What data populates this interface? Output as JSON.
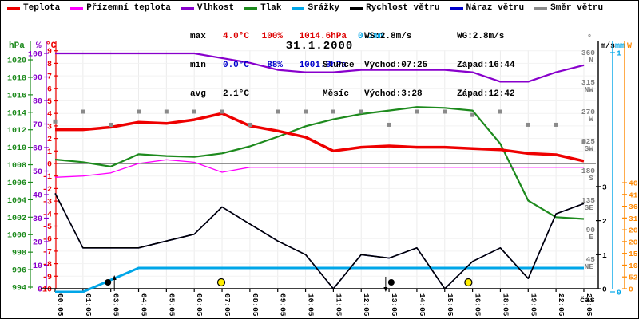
{
  "title": "31.1.2000",
  "xlabel": "čas",
  "legend": [
    {
      "label": "Teplota",
      "color": "#ee0000"
    },
    {
      "label": "Přízemní teplota",
      "color": "#ff00ff"
    },
    {
      "label": "Vlhkost",
      "color": "#8800cc"
    },
    {
      "label": "Tlak",
      "color": "#1d8a1d"
    },
    {
      "label": "Srážky",
      "color": "#00a6e8"
    },
    {
      "label": "Rychlost větru",
      "color": "#000000"
    },
    {
      "label": "Náraz větru",
      "color": "#0000cc"
    },
    {
      "label": "Směr větru",
      "color": "#8a8a8a"
    }
  ],
  "stats": {
    "max": {
      "label": "max",
      "temp": "4.0°C",
      "hum": "100%",
      "pres": "1014.6hPa",
      "precip": "0.1mm"
    },
    "min": {
      "label": "min",
      "temp": "0.0°C",
      "hum": "88%",
      "pres": "1001.8hPa",
      "precip": ""
    },
    "avg": {
      "label": "avg",
      "temp": "2.1°C",
      "hum": "",
      "pres": "",
      "precip": ""
    },
    "wind": {
      "ws": "WS:2.8m/s",
      "wg": "WG:2.8m/s"
    },
    "sun": {
      "label": "Slunce",
      "rise": "Východ:07:25",
      "set": "Západ:16:44"
    },
    "moon": {
      "label": "Měsíc",
      "rise": "Východ:3:28",
      "set": "Západ:12:42"
    }
  },
  "axes": {
    "hpa": {
      "label": "hPa",
      "color": "#1d8a1d",
      "ticks": [
        994,
        996,
        998,
        1000,
        1002,
        1004,
        1006,
        1008,
        1010,
        1012,
        1014,
        1016,
        1018,
        1020
      ]
    },
    "pct": {
      "label": "%",
      "color": "#8800cc",
      "ticks": [
        0,
        10,
        20,
        30,
        40,
        50,
        60,
        70,
        80,
        90,
        100
      ]
    },
    "degC": {
      "label": "°C",
      "color": "#ee0000",
      "ticks": [
        -10,
        -9,
        -8,
        -7,
        -6,
        -5,
        -4,
        -3,
        -2,
        -1,
        0,
        1,
        2,
        3,
        4,
        5,
        6,
        7,
        8,
        9
      ]
    },
    "dir": {
      "label": "°",
      "color": "#808080",
      "ticks": [
        [
          45,
          "NE"
        ],
        [
          90,
          "E"
        ],
        [
          135,
          "SE"
        ],
        [
          180,
          "S"
        ],
        [
          225,
          "SW"
        ],
        [
          270,
          "W"
        ],
        [
          315,
          "NW"
        ],
        [
          360,
          "N"
        ]
      ]
    },
    "ms": {
      "label": "m/s",
      "color": "#000000",
      "ticks": [
        0,
        1,
        2,
        3
      ]
    },
    "mm": {
      "label": "mm",
      "color": "#00a6e8",
      "ticks": [
        0,
        1
      ]
    },
    "w": {
      "label": "W",
      "color": "#ff8800",
      "ticks": [
        0,
        52,
        104,
        156,
        208,
        260,
        312,
        364,
        416,
        468
      ]
    }
  },
  "chart_data": {
    "type": "line",
    "x_labels": [
      "00:05",
      "01:05",
      "03:05",
      "04:05",
      "05:05",
      "06:05",
      "07:05",
      "08:05",
      "09:05",
      "10:05",
      "11:05",
      "12:05",
      "13:05",
      "14:05",
      "15:05",
      "16:05",
      "18:05",
      "19:05",
      "22:05",
      "23:05"
    ],
    "series": [
      {
        "id": "srazky",
        "name": "Srážky",
        "unit": "mm",
        "axis": "mm",
        "color": "#00a6e8",
        "width": 3,
        "values": [
          0,
          0,
          0.05,
          0.1,
          0.1,
          0.1,
          0.1,
          0.1,
          0.1,
          0.1,
          0.1,
          0.1,
          0.1,
          0.1,
          0.1,
          0.1,
          0.1,
          0.1,
          0.1,
          0.1
        ]
      },
      {
        "id": "vlhkost",
        "name": "Vlhkost",
        "unit": "%",
        "axis": "pct",
        "color": "#8800cc",
        "width": 2.2,
        "values": [
          100,
          100,
          100,
          100,
          100,
          100,
          98,
          96,
          93,
          92,
          92,
          93,
          93,
          93,
          93,
          92,
          88,
          88,
          92,
          95
        ]
      },
      {
        "id": "tlak",
        "name": "Tlak",
        "unit": "hPa",
        "axis": "hpa",
        "color": "#1d8a1d",
        "width": 2.2,
        "values": [
          1008.6,
          1008.3,
          1007.8,
          1009.2,
          1009.0,
          1008.9,
          1009.3,
          1010.1,
          1011.2,
          1012.4,
          1013.2,
          1013.8,
          1014.2,
          1014.6,
          1014.5,
          1014.2,
          1010.4,
          1003.9,
          1002.0,
          1001.8
        ]
      },
      {
        "id": "prizemni-teplota",
        "name": "Přízemní teplota",
        "unit": "°C",
        "axis": "degC",
        "color": "#ff00ff",
        "width": 1.3,
        "values": [
          -1.1,
          -1.0,
          -0.75,
          0.0,
          0.3,
          0.1,
          -0.7,
          -0.3,
          -0.3,
          -0.3,
          -0.3,
          -0.3,
          -0.3,
          -0.3,
          -0.3,
          -0.3,
          -0.3,
          -0.3,
          -0.3,
          -0.3
        ]
      },
      {
        "id": "naraz-vetru",
        "name": "Náraz větru",
        "unit": "m/s",
        "axis": "ms",
        "color": "#0000cc",
        "width": 1.6,
        "values": [
          2.8,
          1.2,
          1.2,
          1.2,
          1.4,
          1.6,
          2.4,
          1.9,
          1.4,
          1.0,
          0,
          1.0,
          0.9,
          1.2,
          0,
          0.8,
          1.2,
          0.3,
          2.2,
          2.5
        ]
      },
      {
        "id": "rychlost-vetru",
        "name": "Rychlost větru",
        "unit": "m/s",
        "axis": "ms",
        "color": "#000000",
        "width": 1.6,
        "values": [
          2.8,
          1.2,
          1.2,
          1.2,
          1.4,
          1.6,
          2.4,
          1.9,
          1.4,
          1.0,
          0,
          1.0,
          0.9,
          1.2,
          0,
          0.8,
          1.2,
          0.3,
          2.2,
          2.5
        ]
      },
      {
        "id": "teplota",
        "name": "Teplota",
        "unit": "°C",
        "axis": "degC",
        "color": "#ee0000",
        "width": 3.5,
        "values": [
          2.7,
          2.7,
          2.9,
          3.3,
          3.2,
          3.5,
          4.0,
          3.0,
          2.6,
          2.1,
          1.0,
          1.3,
          1.4,
          1.3,
          1.3,
          1.2,
          1.1,
          0.8,
          0.7,
          0.2
        ]
      }
    ],
    "scatter": {
      "id": "smer-vetru",
      "name": "Směr větru",
      "unit": "°",
      "axis": "dir",
      "color": "#8a8a8a",
      "values": [
        255,
        270,
        250,
        270,
        270,
        270,
        270,
        250,
        270,
        270,
        270,
        270,
        250,
        270,
        270,
        265,
        270,
        250,
        250,
        225
      ]
    },
    "markers": [
      {
        "id": "moonrise-marker",
        "kind": "moon",
        "idx": 1.9,
        "arrow": "up"
      },
      {
        "id": "sunrise-marker",
        "kind": "sun",
        "idx": 5.97,
        "arrow": ""
      },
      {
        "id": "moonset-marker",
        "kind": "moon",
        "idx": 12.08,
        "arrow": "down"
      },
      {
        "id": "sunset-marker",
        "kind": "sun",
        "idx": 14.85,
        "arrow": ""
      }
    ],
    "marker_colors": {
      "sun": "#ffee00",
      "moon": "#000000"
    }
  }
}
